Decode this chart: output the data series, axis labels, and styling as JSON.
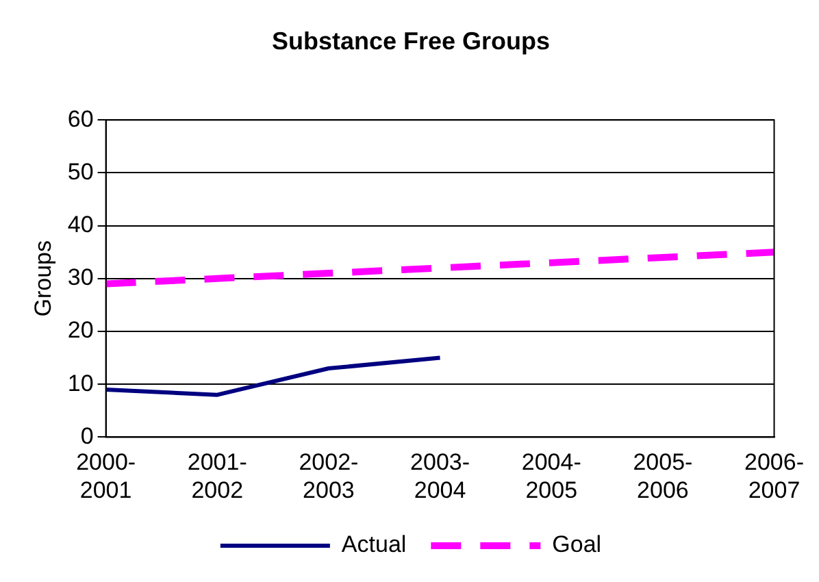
{
  "chart_data": {
    "type": "line",
    "title": "Substance Free Groups",
    "ylabel": "Groups",
    "categories": [
      "2000-2001",
      "2001-2002",
      "2002-2003",
      "2003-2004",
      "2004-2005",
      "2005-2006",
      "2006-2007"
    ],
    "series": [
      {
        "name": "Actual",
        "color": "#000080",
        "values": [
          9,
          8,
          13,
          15,
          null,
          null,
          null
        ],
        "line_style": "solid"
      },
      {
        "name": "Goal",
        "color": "#ff00ff",
        "values": [
          29,
          30,
          31,
          32,
          33,
          34,
          35
        ],
        "line_style": "dashed"
      }
    ],
    "ylim": [
      0,
      60
    ],
    "yticks": [
      0,
      10,
      20,
      30,
      40,
      50,
      60
    ],
    "grid": "y",
    "legend": "bottom",
    "marker": "none"
  }
}
